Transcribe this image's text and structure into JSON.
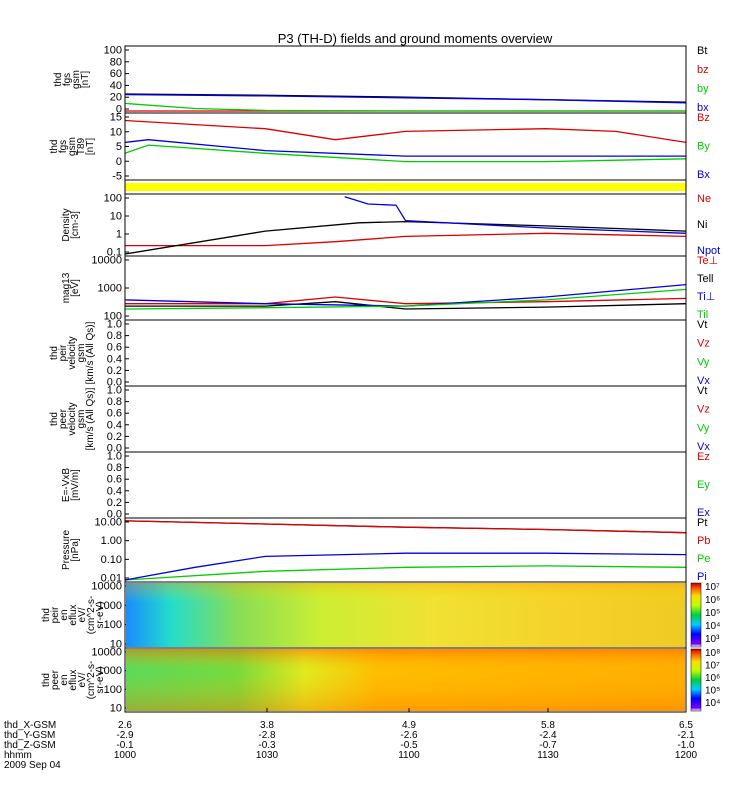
{
  "title": "P3 (TH-D) fields and ground moments overview",
  "colors": {
    "black": "#000000",
    "red": "#dd0000",
    "green": "#00cc00",
    "blue": "#0000dd",
    "yellow": "#ffff00"
  },
  "panels": [
    {
      "ylabel": [
        "thd",
        "fgs",
        "gsm",
        "[nT]"
      ],
      "ticks": [
        "100",
        "80",
        "60",
        "40",
        "20",
        "0"
      ],
      "legend": [
        {
          "text": "Bt",
          "color": "black"
        },
        {
          "text": "bz",
          "color": "red"
        },
        {
          "text": "by",
          "color": "green"
        },
        {
          "text": "bx",
          "color": "blue"
        }
      ]
    },
    {
      "ylabel": [
        "thd",
        "fgs",
        "gsm",
        "T89",
        "[nT]"
      ],
      "ticks": [
        "15",
        "10",
        "5",
        "0",
        "-5"
      ],
      "legend": [
        {
          "text": "Bz",
          "color": "red"
        },
        {
          "text": "By",
          "color": "green"
        },
        {
          "text": "Bx",
          "color": "blue"
        }
      ]
    },
    {
      "ylabel": [],
      "ticks": [],
      "legend": []
    },
    {
      "ylabel": [
        "Density",
        "[cm-3]"
      ],
      "ticks": [
        "100",
        "10",
        "1",
        "0.1"
      ],
      "legend": [
        {
          "text": "Ne",
          "color": "red"
        },
        {
          "text": "Ni",
          "color": "black"
        },
        {
          "text": "Npot",
          "color": "blue"
        }
      ]
    },
    {
      "ylabel": [
        "mag13",
        "[eV]"
      ],
      "ticks": [
        "10000",
        "1000",
        "100"
      ],
      "legend": [
        {
          "text": "Te⊥",
          "color": "red"
        },
        {
          "text": "Tell",
          "color": "black"
        },
        {
          "text": "Ti⊥",
          "color": "blue"
        },
        {
          "text": "Til",
          "color": "green"
        }
      ]
    },
    {
      "ylabel": [
        "thd",
        "peir",
        "velocity",
        "gsm",
        "[km/s (All Qs)]"
      ],
      "ticks": [
        "1.0",
        "0.8",
        "0.6",
        "0.4",
        "0.2",
        "0.0"
      ],
      "legend": [
        {
          "text": "Vt",
          "color": "black"
        },
        {
          "text": "Vz",
          "color": "red"
        },
        {
          "text": "Vy",
          "color": "green"
        },
        {
          "text": "Vx",
          "color": "blue"
        }
      ]
    },
    {
      "ylabel": [
        "thd",
        "peer",
        "velocity",
        "gsm",
        "[km/s (All Qs)]"
      ],
      "ticks": [
        "1.0",
        "0.8",
        "0.6",
        "0.4",
        "0.2",
        "0.0"
      ],
      "legend": [
        {
          "text": "Vt",
          "color": "black"
        },
        {
          "text": "Vz",
          "color": "red"
        },
        {
          "text": "Vy",
          "color": "green"
        },
        {
          "text": "Vx",
          "color": "blue"
        }
      ]
    },
    {
      "ylabel": [
        "E=-VxB",
        "[mV/m]"
      ],
      "ticks": [
        "1.0",
        "0.8",
        "0.6",
        "0.4",
        "0.2",
        "0.0"
      ],
      "legend": [
        {
          "text": "Ez",
          "color": "red"
        },
        {
          "text": "Ey",
          "color": "green"
        },
        {
          "text": "Ex",
          "color": "blue"
        }
      ]
    },
    {
      "ylabel": [
        "Pressure",
        "[nPa]"
      ],
      "ticks": [
        "10.00",
        "1.00",
        "0.10",
        "0.01"
      ],
      "legend": [
        {
          "text": "Pt",
          "color": "black"
        },
        {
          "text": "Pb",
          "color": "red"
        },
        {
          "text": "Pe",
          "color": "green"
        },
        {
          "text": "Pi",
          "color": "blue"
        }
      ]
    },
    {
      "ylabel": [
        "thd",
        "peir",
        "en",
        "eflux",
        "eV/",
        "(cm^2-s-",
        "sr-eV)"
      ],
      "ticks": [
        "10000",
        "1000",
        "100",
        "10"
      ],
      "colorbar": [
        "10⁷",
        "10⁶",
        "10⁵",
        "10⁴",
        "10³"
      ],
      "legend": []
    },
    {
      "ylabel": [
        "thd",
        "peer",
        "en",
        "eflux",
        "eV/",
        "(cm^2-s-",
        "sr-eV)"
      ],
      "ticks": [
        "10000",
        "1000",
        "100",
        "10"
      ],
      "colorbar": [
        "10⁸",
        "10⁷",
        "10⁶",
        "10⁵",
        "10⁴"
      ],
      "legend": []
    }
  ],
  "footer": {
    "row_labels": [
      "thd_X-GSM",
      "thd_Y-GSM",
      "thd_Z-GSM",
      "hhmm",
      "2009 Sep 04"
    ],
    "columns": [
      [
        "2.6",
        "-2.9",
        "-0.1",
        "1000"
      ],
      [
        "3.8",
        "-2.8",
        "-0.3",
        "1030"
      ],
      [
        "4.9",
        "-2.6",
        "-0.5",
        "1100"
      ],
      [
        "5.8",
        "-2.4",
        "-0.7",
        "1130"
      ],
      [
        "6.5",
        "-2.1",
        "-1.0",
        "1200"
      ]
    ]
  },
  "chart_data": {
    "type": "line",
    "title": "P3 (TH-D) fields and ground moments overview",
    "xlabel": "hhmm",
    "x": [
      "1000",
      "1030",
      "1100",
      "1130",
      "1200"
    ],
    "xlim": [
      "1000",
      "1200"
    ],
    "panels": [
      {
        "name": "thd fgs gsm [nT]",
        "scale": "linear",
        "ylim": [
          0,
          100
        ],
        "series": [
          {
            "name": "Bt",
            "color": "black",
            "x": [
              1000,
              1030,
              1100,
              1130,
              1200
            ],
            "y": [
              27,
              25,
              22,
              18,
              14
            ]
          },
          {
            "name": "bz",
            "color": "red",
            "x": [
              1000,
              1030,
              1100,
              1130,
              1200
            ],
            "y": [
              0,
              0,
              0,
              0,
              0
            ]
          },
          {
            "name": "by",
            "color": "green",
            "x": [
              1000,
              1015,
              1030,
              1100,
              1200
            ],
            "y": [
              12,
              4,
              1,
              0,
              0
            ]
          },
          {
            "name": "bx",
            "color": "blue",
            "x": [
              1000,
              1030,
              1100,
              1130,
              1200
            ],
            "y": [
              26,
              24,
              21,
              18,
              13
            ]
          }
        ]
      },
      {
        "name": "thd fgs gsm T89 [nT]",
        "scale": "linear",
        "ylim": [
          -7,
          16
        ],
        "series": [
          {
            "name": "Bz",
            "color": "red",
            "x": [
              1000,
              1030,
              1045,
              1100,
              1130,
              1145,
              1200
            ],
            "y": [
              14,
              11,
              7,
              10,
              11,
              10,
              6
            ]
          },
          {
            "name": "By",
            "color": "green",
            "x": [
              1000,
              1005,
              1030,
              1100,
              1130,
              1200
            ],
            "y": [
              2,
              5,
              2,
              -1,
              -1,
              0
            ]
          },
          {
            "name": "Bx",
            "color": "blue",
            "x": [
              1000,
              1005,
              1030,
              1100,
              1130,
              1200
            ],
            "y": [
              6,
              7,
              3,
              1,
              1,
              1
            ]
          }
        ]
      },
      {
        "name": "Density [cm-3]",
        "scale": "log",
        "ylim": [
          0.1,
          200
        ],
        "series": [
          {
            "name": "Ne",
            "color": "red",
            "x": [
              1000,
              1030,
              1045,
              1100,
              1130,
              1200
            ],
            "y": [
              0.3,
              0.3,
              0.5,
              1,
              1.5,
              1
            ]
          },
          {
            "name": "Ni",
            "color": "black",
            "x": [
              1000,
              1030,
              1050,
              1100,
              1130,
              1200
            ],
            "y": [
              0.1,
              2,
              6,
              7,
              4,
              2
            ]
          },
          {
            "name": "Npot",
            "color": "blue",
            "x": [
              1047,
              1052,
              1058,
              1100,
              1130,
              1200
            ],
            "y": [
              180,
              70,
              60,
              8,
              3,
              1.5
            ]
          }
        ]
      },
      {
        "name": "mag13 [eV]",
        "scale": "log",
        "ylim": [
          100,
          10000
        ],
        "series": [
          {
            "name": "Te⊥",
            "color": "red",
            "x": [
              1000,
              1030,
              1045,
              1100,
              1130,
              1200
            ],
            "y": [
              300,
              300,
              500,
              300,
              350,
              450
            ]
          },
          {
            "name": "Tell",
            "color": "black",
            "x": [
              1000,
              1030,
              1045,
              1100,
              1130,
              1200
            ],
            "y": [
              250,
              250,
              350,
              200,
              230,
              300
            ]
          },
          {
            "name": "Ti⊥",
            "color": "blue",
            "x": [
              1000,
              1030,
              1100,
              1130,
              1200
            ],
            "y": [
              400,
              300,
              250,
              500,
              1300
            ]
          },
          {
            "name": "Til",
            "color": "green",
            "x": [
              1000,
              1030,
              1100,
              1130,
              1200
            ],
            "y": [
              200,
              220,
              250,
              400,
              900
            ]
          }
        ]
      },
      {
        "name": "thd peir velocity gsm",
        "scale": "linear",
        "ylim": [
          0,
          1
        ],
        "series": []
      },
      {
        "name": "thd peer velocity gsm",
        "scale": "linear",
        "ylim": [
          0,
          1
        ],
        "series": []
      },
      {
        "name": "E=-VxB [mV/m]",
        "scale": "linear",
        "ylim": [
          0,
          1
        ],
        "series": []
      },
      {
        "name": "Pressure [nPa]",
        "scale": "log",
        "ylim": [
          0.01,
          20
        ],
        "series": [
          {
            "name": "Pt",
            "color": "black",
            "x": [
              1000,
              1030,
              1100,
              1130,
              1200
            ],
            "y": [
              18,
              12,
              8,
              6,
              4
            ]
          },
          {
            "name": "Pb",
            "color": "red",
            "x": [
              1000,
              1030,
              1100,
              1130,
              1200
            ],
            "y": [
              18,
              12,
              8,
              6,
              4
            ]
          },
          {
            "name": "Pe",
            "color": "green",
            "x": [
              1000,
              1030,
              1100,
              1130,
              1200
            ],
            "y": [
              0.01,
              0.03,
              0.05,
              0.06,
              0.05
            ]
          },
          {
            "name": "Pi",
            "color": "blue",
            "x": [
              1000,
              1015,
              1030,
              1100,
              1130,
              1200
            ],
            "y": [
              0.01,
              0.05,
              0.2,
              0.3,
              0.3,
              0.25
            ]
          }
        ]
      },
      {
        "name": "thd peir en eflux",
        "type": "heatmap",
        "scale": "log",
        "ylim": [
          5,
          20000
        ],
        "colorbar": [
          "10^3",
          "10^7"
        ]
      },
      {
        "name": "thd peer en eflux",
        "type": "heatmap",
        "scale": "log",
        "ylim": [
          5,
          20000
        ],
        "colorbar": [
          "10^4",
          "10^8"
        ]
      }
    ]
  }
}
